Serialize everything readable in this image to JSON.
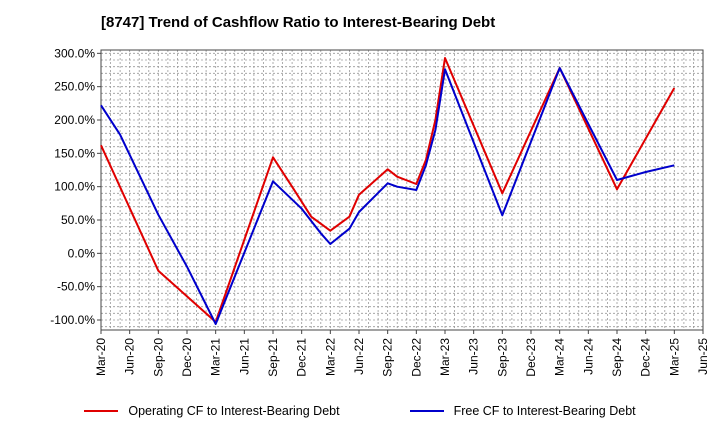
{
  "chart_data": {
    "type": "line",
    "title": "[8747]  Trend of Cashflow Ratio to Interest-Bearing Debt",
    "xlabel": "",
    "ylabel": "",
    "ylim": [
      -115,
      305
    ],
    "yticks": [
      300,
      250,
      200,
      150,
      100,
      50,
      0,
      -50,
      -100
    ],
    "ytick_labels": [
      "300.0%",
      "250.0%",
      "200.0%",
      "150.0%",
      "100.0%",
      "50.0%",
      "0.0%",
      "-50.0%",
      "-100.0%"
    ],
    "xticks": [
      "Mar-20",
      "Jun-20",
      "Sep-20",
      "Dec-20",
      "Mar-21",
      "Jun-21",
      "Sep-21",
      "Dec-21",
      "Mar-22",
      "Jun-22",
      "Sep-22",
      "Dec-22",
      "Mar-23",
      "Jun-23",
      "Sep-23",
      "Dec-23",
      "Mar-24",
      "Jun-24",
      "Sep-24",
      "Dec-24",
      "Mar-25",
      "Jun-25"
    ],
    "grid": true,
    "legend_position": "bottom",
    "series": [
      {
        "name": "Operating CF to Interest-Bearing Debt",
        "color": "#e00000",
        "points": [
          {
            "x": "Mar-20",
            "y": 162
          },
          {
            "x": "Sep-20",
            "y": -26
          },
          {
            "x": "Mar-21",
            "y": -103
          },
          {
            "x": "Sep-21",
            "y": 144
          },
          {
            "x": "Nov-21",
            "y": 100
          },
          {
            "x": "Jan-22",
            "y": 55
          },
          {
            "x": "Mar-22",
            "y": 34
          },
          {
            "x": "May-22",
            "y": 55
          },
          {
            "x": "Jun-22",
            "y": 88
          },
          {
            "x": "Sep-22",
            "y": 126
          },
          {
            "x": "Oct-22",
            "y": 115
          },
          {
            "x": "Dec-22",
            "y": 104
          },
          {
            "x": "Jan-23",
            "y": 140
          },
          {
            "x": "Feb-23",
            "y": 200
          },
          {
            "x": "Mar-23",
            "y": 293
          },
          {
            "x": "Sep-23",
            "y": 90
          },
          {
            "x": "Mar-24",
            "y": 278
          },
          {
            "x": "Sep-24",
            "y": 96
          },
          {
            "x": "Mar-25",
            "y": 248
          }
        ]
      },
      {
        "name": "Free CF to Interest-Bearing Debt",
        "color": "#0000cc",
        "points": [
          {
            "x": "Mar-20",
            "y": 222
          },
          {
            "x": "May-20",
            "y": 178
          },
          {
            "x": "Sep-20",
            "y": 58
          },
          {
            "x": "Dec-20",
            "y": -20
          },
          {
            "x": "Mar-21",
            "y": -106
          },
          {
            "x": "Sep-21",
            "y": 108
          },
          {
            "x": "Dec-21",
            "y": 67
          },
          {
            "x": "Feb-22",
            "y": 30
          },
          {
            "x": "Mar-22",
            "y": 14
          },
          {
            "x": "May-22",
            "y": 37
          },
          {
            "x": "Jun-22",
            "y": 62
          },
          {
            "x": "Sep-22",
            "y": 105
          },
          {
            "x": "Oct-22",
            "y": 100
          },
          {
            "x": "Dec-22",
            "y": 95
          },
          {
            "x": "Jan-23",
            "y": 132
          },
          {
            "x": "Feb-23",
            "y": 185
          },
          {
            "x": "Mar-23",
            "y": 276
          },
          {
            "x": "Sep-23",
            "y": 57
          },
          {
            "x": "Mar-24",
            "y": 278
          },
          {
            "x": "Sep-24",
            "y": 110
          },
          {
            "x": "Dec-24",
            "y": 122
          },
          {
            "x": "Mar-25",
            "y": 132
          }
        ]
      }
    ]
  }
}
